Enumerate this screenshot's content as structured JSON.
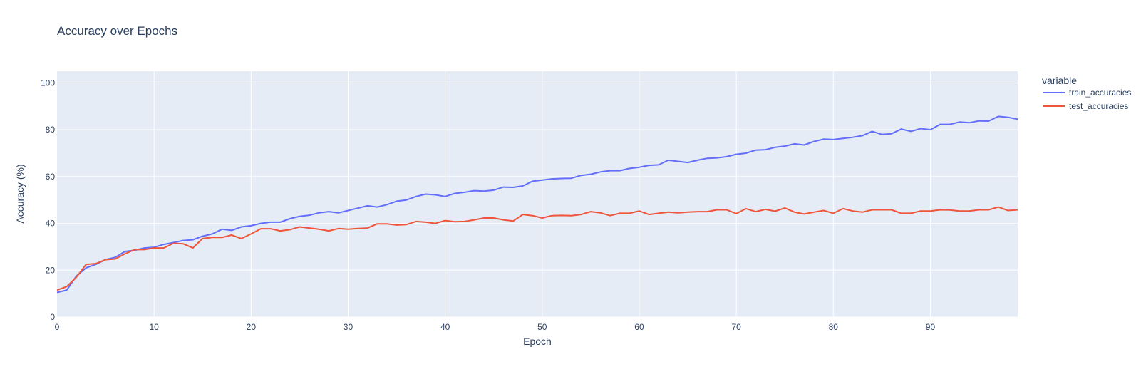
{
  "chart_data": {
    "type": "line",
    "title": "Accuracy over Epochs",
    "xlabel": "Epoch",
    "ylabel": "Accuracy (%)",
    "xlim": [
      0,
      99
    ],
    "ylim": [
      0,
      105
    ],
    "xticks": [
      0,
      10,
      20,
      30,
      40,
      50,
      60,
      70,
      80,
      90
    ],
    "yticks": [
      0,
      20,
      40,
      60,
      80,
      100
    ],
    "grid": true,
    "legend_title": "variable",
    "legend_position": "right",
    "x": [
      0,
      1,
      2,
      3,
      4,
      5,
      6,
      7,
      8,
      9,
      10,
      11,
      12,
      13,
      14,
      15,
      16,
      17,
      18,
      19,
      20,
      21,
      22,
      23,
      24,
      25,
      26,
      27,
      28,
      29,
      30,
      31,
      32,
      33,
      34,
      35,
      36,
      37,
      38,
      39,
      40,
      41,
      42,
      43,
      44,
      45,
      46,
      47,
      48,
      49,
      50,
      51,
      52,
      53,
      54,
      55,
      56,
      57,
      58,
      59,
      60,
      61,
      62,
      63,
      64,
      65,
      66,
      67,
      68,
      69,
      70,
      71,
      72,
      73,
      74,
      75,
      76,
      77,
      78,
      79,
      80,
      81,
      82,
      83,
      84,
      85,
      86,
      87,
      88,
      89,
      90,
      91,
      92,
      93,
      94,
      95,
      96,
      97,
      98,
      99
    ],
    "series": [
      {
        "name": "train_accuracies",
        "color": "#636efa",
        "values": [
          10.5,
          11.5,
          17.5,
          21.0,
          22.5,
          24.5,
          25.5,
          28.0,
          28.5,
          29.5,
          29.8,
          31.0,
          31.8,
          32.7,
          33.0,
          34.5,
          35.5,
          37.5,
          37.0,
          38.5,
          39.0,
          40.0,
          40.5,
          40.5,
          42.0,
          43.0,
          43.5,
          44.5,
          45.0,
          44.5,
          45.5,
          46.5,
          47.5,
          47.0,
          48.0,
          49.5,
          50.0,
          51.5,
          52.5,
          52.2,
          51.5,
          52.8,
          53.3,
          54.0,
          53.8,
          54.2,
          55.5,
          55.4,
          56.0,
          58.0,
          58.5,
          59.0,
          59.2,
          59.3,
          60.5,
          61.0,
          62.0,
          62.5,
          62.5,
          63.5,
          64.0,
          64.8,
          65.0,
          67.0,
          66.5,
          66.0,
          67.0,
          67.8,
          68.0,
          68.5,
          69.5,
          70.0,
          71.3,
          71.5,
          72.5,
          73.0,
          74.0,
          73.5,
          75.0,
          76.0,
          75.8,
          76.3,
          76.8,
          77.5,
          79.3,
          78.0,
          78.3,
          80.3,
          79.3,
          80.5,
          80.0,
          82.3,
          82.3,
          83.3,
          83.0,
          83.8,
          83.7,
          85.7,
          85.3,
          84.5
        ]
      },
      {
        "name": "test_accuracies",
        "color": "#ef553b",
        "values": [
          11.5,
          13.0,
          17.0,
          22.5,
          22.8,
          24.5,
          24.8,
          27.0,
          28.8,
          28.8,
          29.5,
          29.5,
          31.5,
          31.3,
          29.5,
          33.5,
          34.0,
          34.0,
          35.0,
          33.5,
          35.5,
          37.7,
          37.7,
          36.8,
          37.3,
          38.5,
          38.0,
          37.5,
          36.8,
          37.8,
          37.5,
          37.8,
          38.0,
          39.8,
          39.8,
          39.3,
          39.5,
          40.8,
          40.5,
          40.0,
          41.2,
          40.7,
          40.8,
          41.5,
          42.3,
          42.3,
          41.5,
          41.0,
          43.8,
          43.3,
          42.3,
          43.3,
          43.4,
          43.3,
          43.8,
          45.0,
          44.5,
          43.3,
          44.3,
          44.3,
          45.3,
          43.8,
          44.3,
          44.8,
          44.5,
          44.8,
          45.0,
          45.0,
          45.8,
          45.8,
          44.2,
          46.3,
          45.0,
          46.0,
          45.2,
          46.6,
          44.8,
          44.0,
          44.8,
          45.5,
          44.3,
          46.3,
          45.3,
          44.8,
          45.8,
          45.8,
          45.8,
          44.3,
          44.3,
          45.3,
          45.3,
          45.8,
          45.7,
          45.3,
          45.3,
          45.8,
          45.8,
          47.0,
          45.5,
          45.8
        ]
      }
    ]
  }
}
